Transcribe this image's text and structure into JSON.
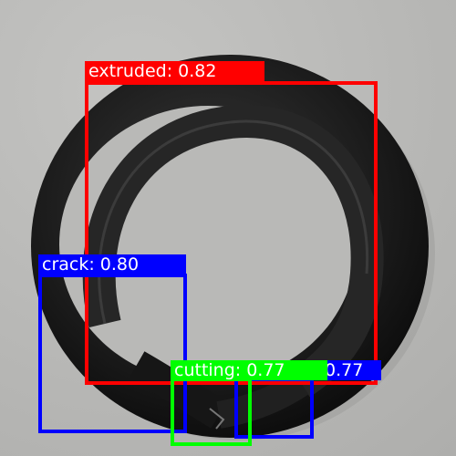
{
  "detections": [
    {
      "label_text": "extruded: 0.82",
      "class": "extruded",
      "score": 0.82,
      "color": "#ff0000"
    },
    {
      "label_text": "crack: 0.80",
      "class": "crack",
      "score": 0.8,
      "color": "#0000ff"
    },
    {
      "label_text": "0.77",
      "class": "crack",
      "score": 0.77,
      "color": "#0000ff"
    },
    {
      "label_text": "cutting: 0.77",
      "class": "cutting",
      "score": 0.77,
      "color": "#00ff00"
    }
  ]
}
